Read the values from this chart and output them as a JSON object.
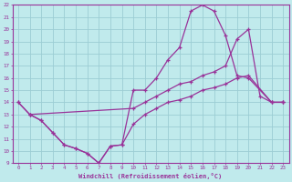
{
  "background_color": "#c0eaec",
  "grid_color": "#9ccdd4",
  "line_color": "#993399",
  "xlabel": "Windchill (Refroidissement éolien,°C)",
  "xlim": [
    -0.5,
    23.5
  ],
  "ylim": [
    9,
    22
  ],
  "xtick_vals": [
    0,
    1,
    2,
    3,
    4,
    5,
    6,
    7,
    8,
    9,
    10,
    11,
    12,
    13,
    14,
    15,
    16,
    17,
    18,
    19,
    20,
    21,
    22,
    23
  ],
  "ytick_vals": [
    9,
    10,
    11,
    12,
    13,
    14,
    15,
    16,
    17,
    18,
    19,
    20,
    21,
    22
  ],
  "line1_x": [
    0,
    1,
    2,
    3,
    4,
    5,
    6,
    7,
    8,
    9,
    10,
    11,
    12,
    13,
    14,
    15,
    16,
    17,
    18,
    19,
    20,
    22,
    23
  ],
  "line1_y": [
    14,
    13,
    12.5,
    11.5,
    10.5,
    10.2,
    9.8,
    9.0,
    10.4,
    10.5,
    15,
    15,
    16,
    17.5,
    18.5,
    21.5,
    22.0,
    21.5,
    19.5,
    16.2,
    16,
    14.0,
    14.0
  ],
  "line2_x": [
    0,
    1,
    10,
    11,
    12,
    13,
    14,
    15,
    16,
    17,
    18,
    19,
    20,
    21,
    22,
    23
  ],
  "line2_y": [
    14,
    13,
    13.5,
    14.0,
    14.5,
    15.0,
    15.5,
    15.7,
    16.2,
    16.5,
    17.0,
    19.2,
    20.0,
    14.5,
    14.0,
    14.0
  ],
  "line3_x": [
    1,
    2,
    3,
    4,
    5,
    6,
    7,
    8,
    9,
    10,
    11,
    12,
    13,
    14,
    15,
    16,
    17,
    18,
    19,
    20,
    22,
    23
  ],
  "line3_y": [
    13.0,
    12.5,
    11.5,
    10.5,
    10.2,
    9.8,
    9.0,
    10.4,
    10.5,
    12.2,
    13.0,
    13.5,
    14.0,
    14.2,
    14.5,
    15.0,
    15.2,
    15.5,
    16.0,
    16.2,
    14.0,
    14.0
  ]
}
